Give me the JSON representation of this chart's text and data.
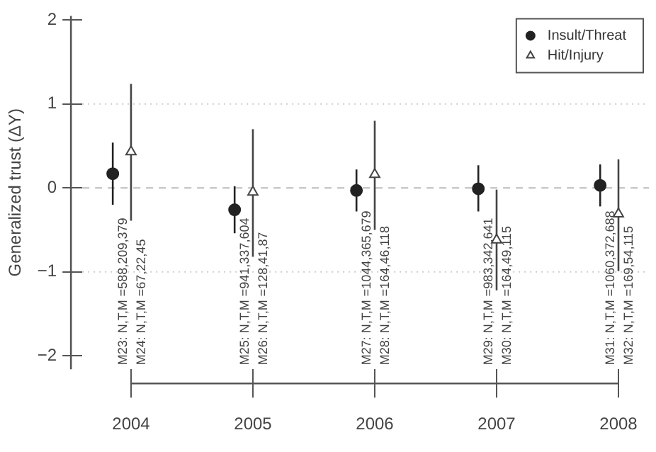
{
  "chart_data": {
    "type": "scatter",
    "ylabel": "Generalized trust (ΔY)",
    "xlim": [
      2003.6,
      2008.25
    ],
    "xticks": [
      2004,
      2005,
      2006,
      2007,
      2008
    ],
    "ylim": [
      -2.16,
      2.05
    ],
    "yticks": [
      -2,
      -1,
      0,
      1,
      2
    ],
    "legend": "top right",
    "grid": false,
    "series": [
      {
        "name": "Insult/Threat",
        "color": "#222222",
        "marker": "circle",
        "x": [
          2003.85,
          2004.85,
          2005.85,
          2006.85,
          2007.85
        ],
        "values": [
          0.17,
          -0.26,
          -0.03,
          -0.01,
          0.03
        ],
        "errors": [
          [
            -0.2,
            0.54
          ],
          [
            -0.54,
            0.02
          ],
          [
            -0.28,
            0.22
          ],
          [
            -0.28,
            0.27
          ],
          [
            -0.22,
            0.28
          ]
        ]
      },
      {
        "name": "Hit/Injury",
        "color": "#444444",
        "marker": "triangle",
        "x": [
          2004,
          2005,
          2006,
          2007,
          2008
        ],
        "values": [
          0.43,
          -0.05,
          0.16,
          -0.62,
          -0.31
        ],
        "errors": [
          [
            -0.39,
            1.24
          ],
          [
            -0.82,
            0.7
          ],
          [
            -0.5,
            0.8
          ],
          [
            -1.22,
            -0.02
          ],
          [
            -0.99,
            0.34
          ]
        ]
      }
    ],
    "ref_lines": [
      {
        "axis": "y",
        "value": 1,
        "color": "#cccccc",
        "line_style": "dotted"
      },
      {
        "axis": "y",
        "value": 0,
        "color": "#bbbbbb",
        "line_style": "dashed"
      },
      {
        "axis": "y",
        "value": -1,
        "color": "#cccccc",
        "line_style": "dotted"
      }
    ],
    "annotations": [
      "M23: N,T,M =588,209,379",
      "M24: N,T,M =67,22,45",
      "M25: N,T,M =941,337,604",
      "M26: N,T,M =128,41,87",
      "M27: N,T,M =1044,365,679",
      "M28: N,T,M =164,46,118",
      "M29: N,T,M =983,342,641",
      "M30: N,T,M =164,49,115",
      "M31: N,T,M =1060,372,688",
      "M32: N,T,M =169,54,115"
    ]
  }
}
